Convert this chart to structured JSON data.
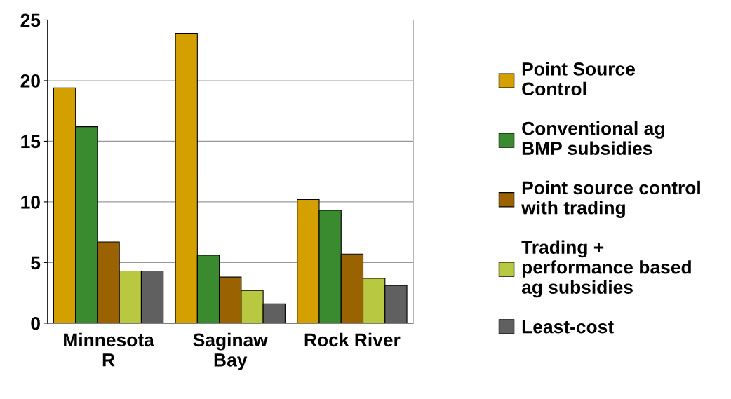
{
  "chart_data": {
    "type": "bar",
    "categories": [
      "Minnesota\nR",
      "Saginaw\nBay",
      "Rock River"
    ],
    "series": [
      {
        "name": "Point Source\nControl",
        "color": "#d4a000",
        "values": [
          19.4,
          23.9,
          10.2
        ]
      },
      {
        "name": "Conventional ag\nBMP subsidies",
        "color": "#3a8a30",
        "values": [
          16.2,
          5.6,
          9.3
        ]
      },
      {
        "name": "Point source control\nwith trading",
        "color": "#9a6200",
        "values": [
          6.7,
          3.8,
          5.7
        ]
      },
      {
        "name": "Trading +\nperformance based\nag subsidies",
        "color": "#b8c840",
        "values": [
          4.3,
          2.7,
          3.7
        ]
      },
      {
        "name": "Least-cost",
        "color": "#606060",
        "values": [
          4.3,
          1.6,
          3.1
        ]
      }
    ],
    "ylim": [
      0,
      25
    ],
    "yticks": [
      0,
      5,
      10,
      15,
      20,
      25
    ],
    "grid": "y",
    "legend": "right"
  }
}
